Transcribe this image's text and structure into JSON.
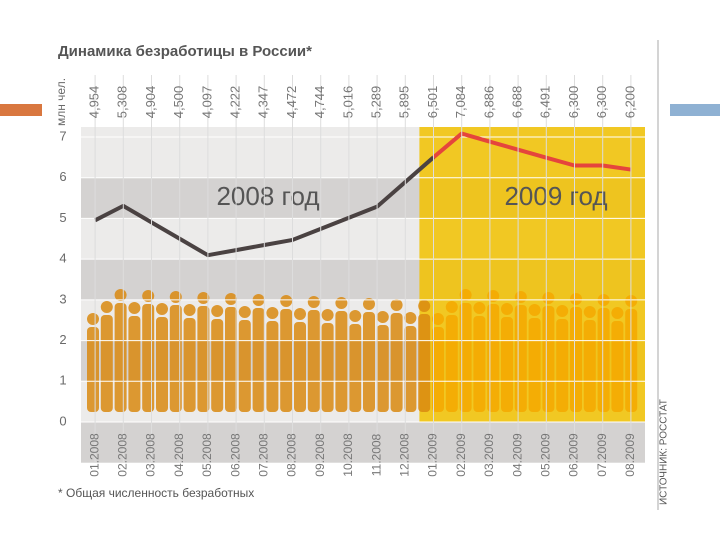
{
  "chart_data": {
    "type": "line",
    "title": "Динамика безработицы в России*",
    "y_label": "млн чел.",
    "footnote": "* Общая численность безработных",
    "source": "ИСТОЧНИК: РОССТАТ",
    "annotations": [
      "2008 год",
      "2009 год"
    ],
    "categories": [
      "01.2008",
      "02.2008",
      "03.2008",
      "04.2008",
      "05.2008",
      "06.2008",
      "07.2008",
      "08.2008",
      "09.2008",
      "10.2008",
      "11.2008",
      "12.2008",
      "01.2009",
      "02.2009",
      "03.2009",
      "04.2009",
      "05.2009",
      "06.2009",
      "07.2009",
      "08.2009"
    ],
    "values": [
      4.954,
      5.308,
      4.904,
      4.5,
      4.097,
      4.222,
      4.347,
      4.472,
      4.744,
      5.016,
      5.289,
      5.895,
      6.501,
      7.084,
      6.886,
      6.688,
      6.491,
      6.3,
      6.3,
      6.2
    ],
    "value_labels": [
      "4,954",
      "5,308",
      "4,904",
      "4,500",
      "4,097",
      "4,222",
      "4,347",
      "4,472",
      "4,744",
      "5,016",
      "5,289",
      "5,895",
      "6,501",
      "7,084",
      "6,886",
      "6,688",
      "6,491",
      "6,300",
      "6,300",
      "6,200"
    ],
    "color": "#4a4242",
    "highlight": {
      "from": "01.2009",
      "color": "#f2c200",
      "line_color": "#e5453c"
    },
    "ylim": [
      0,
      7
    ],
    "yticks": [
      0,
      1,
      2,
      3,
      4,
      5,
      6,
      7
    ],
    "grid": true
  }
}
